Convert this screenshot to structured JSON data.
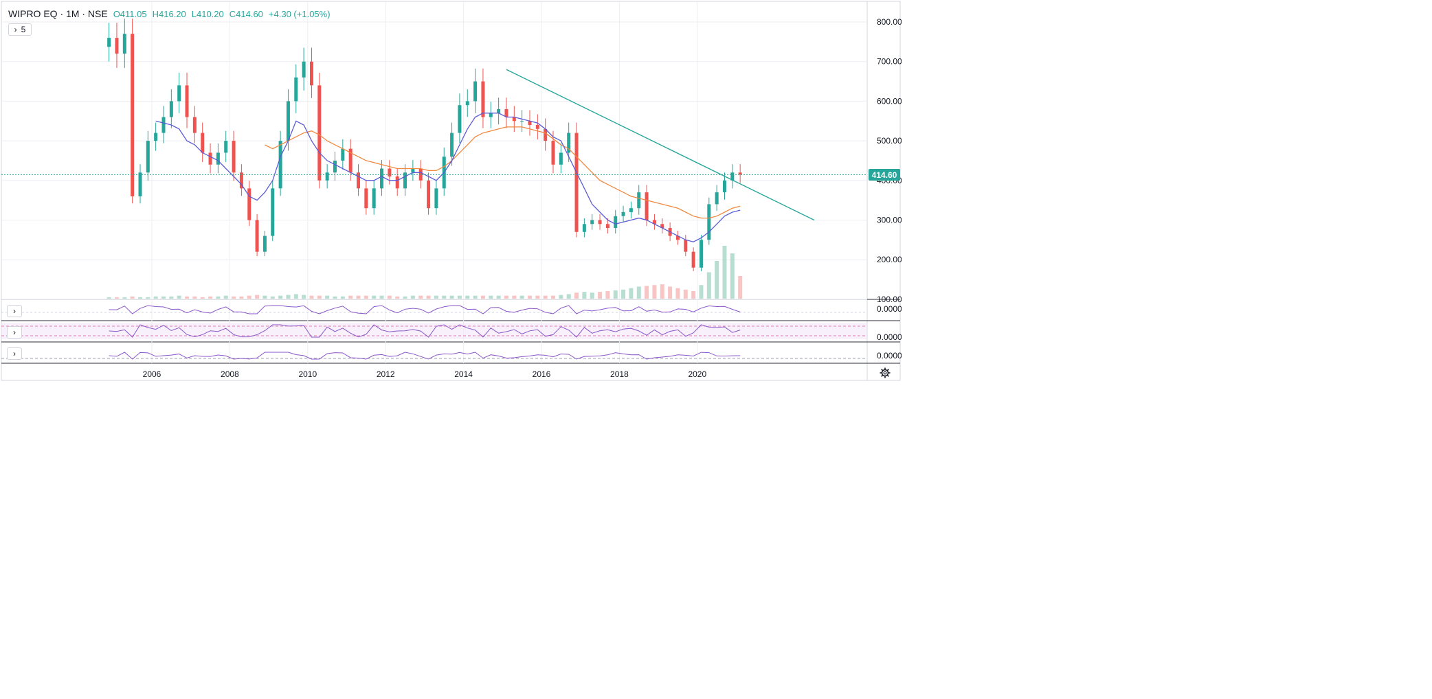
{
  "header": {
    "symbol": "WIPRO EQ · 1M · NSE",
    "open": "O411.05",
    "high": "H416.20",
    "low": "L410.20",
    "close": "C414.60",
    "change": "+4.30 (+1.05%)",
    "indicators_toggle": "5"
  },
  "last_price_label": "414.60",
  "colors": {
    "up": "#26a69a",
    "down": "#ef5350",
    "ma_fast": "#5b5bd6",
    "ma_slow": "#f0883e",
    "trendline": "#26a69a",
    "oscillator": "#8a55c9",
    "grid": "#eceef2"
  },
  "icons": {
    "settings": "gear-icon",
    "collapse": "chevron-right-icon"
  },
  "chart_data": {
    "type": "candlestick",
    "title": "WIPRO EQ · 1M · NSE",
    "price_axis": {
      "ticks": [
        "800.00",
        "700.00",
        "600.00",
        "500.00",
        "400.00",
        "300.00",
        "200.00",
        "100.00"
      ],
      "ylim": [
        100,
        800
      ]
    },
    "time_axis": {
      "ticks": [
        "2006",
        "2008",
        "2010",
        "2012",
        "2014",
        "2016",
        "2018",
        "2020"
      ]
    },
    "grid": true,
    "series": [
      {
        "kind": "close_path",
        "x": [
          2004.9,
          2005.1,
          2005.3,
          2005.5,
          2005.7,
          2005.9,
          2006.1,
          2006.3,
          2006.5,
          2006.7,
          2006.9,
          2007.1,
          2007.3,
          2007.5,
          2007.7,
          2007.9,
          2008.1,
          2008.3,
          2008.5,
          2008.7,
          2008.9,
          2009.1,
          2009.3,
          2009.5,
          2009.7,
          2009.9,
          2010.1,
          2010.3,
          2010.5,
          2010.7,
          2010.9,
          2011.1,
          2011.3,
          2011.5,
          2011.7,
          2011.9,
          2012.1,
          2012.3,
          2012.5,
          2012.7,
          2012.9,
          2013.1,
          2013.3,
          2013.5,
          2013.7,
          2013.9,
          2014.1,
          2014.3,
          2014.5,
          2014.7,
          2014.9,
          2015.1,
          2015.3,
          2015.5,
          2015.7,
          2015.9,
          2016.1,
          2016.3,
          2016.5,
          2016.7,
          2016.9,
          2017.1,
          2017.3,
          2017.5,
          2017.7,
          2017.9,
          2018.1,
          2018.3,
          2018.5,
          2018.7,
          2018.9,
          2019.1,
          2019.3,
          2019.5,
          2019.7,
          2019.9,
          2020.1,
          2020.3,
          2020.5,
          2020.7,
          2020.9,
          2021.1
        ],
        "close": [
          760,
          720,
          770,
          360,
          420,
          500,
          520,
          560,
          600,
          640,
          560,
          520,
          470,
          440,
          470,
          500,
          420,
          380,
          300,
          220,
          260,
          380,
          500,
          600,
          660,
          700,
          640,
          400,
          420,
          450,
          480,
          420,
          380,
          330,
          380,
          430,
          410,
          380,
          420,
          430,
          400,
          330,
          380,
          460,
          520,
          590,
          600,
          650,
          560,
          570,
          580,
          560,
          550,
          550,
          540,
          530,
          500,
          440,
          470,
          520,
          270,
          290,
          300,
          290,
          280,
          310,
          320,
          330,
          370,
          300,
          290,
          280,
          260,
          250,
          220,
          180,
          250,
          340,
          370,
          400,
          420,
          414.6
        ]
      },
      {
        "kind": "ma_fast",
        "values": [
          null,
          null,
          null,
          null,
          null,
          null,
          550,
          545,
          540,
          530,
          500,
          490,
          470,
          460,
          450,
          430,
          410,
          390,
          360,
          350,
          370,
          400,
          460,
          500,
          550,
          540,
          500,
          470,
          450,
          440,
          430,
          420,
          410,
          400,
          400,
          410,
          400,
          400,
          410,
          420,
          420,
          410,
          400,
          420,
          450,
          490,
          530,
          560,
          570,
          570,
          570,
          560,
          560,
          555,
          550,
          545,
          530,
          510,
          500,
          460,
          420,
          380,
          340,
          320,
          300,
          290,
          295,
          300,
          305,
          300,
          290,
          280,
          270,
          260,
          250,
          245,
          255,
          270,
          290,
          310,
          320,
          325
        ]
      },
      {
        "kind": "ma_slow",
        "values": [
          null,
          null,
          null,
          null,
          null,
          null,
          null,
          null,
          null,
          null,
          null,
          null,
          null,
          null,
          null,
          null,
          null,
          null,
          null,
          null,
          490,
          480,
          490,
          500,
          510,
          520,
          525,
          515,
          500,
          490,
          480,
          470,
          460,
          450,
          445,
          440,
          435,
          430,
          430,
          430,
          430,
          425,
          425,
          435,
          450,
          470,
          490,
          510,
          520,
          525,
          530,
          535,
          535,
          535,
          530,
          525,
          520,
          505,
          490,
          480,
          460,
          440,
          420,
          400,
          390,
          380,
          370,
          360,
          355,
          350,
          345,
          340,
          335,
          330,
          320,
          310,
          305,
          305,
          310,
          320,
          330,
          335
        ]
      },
      {
        "kind": "trendline",
        "x": [
          2015.1,
          2023.0
        ],
        "y": [
          680,
          300
        ]
      },
      {
        "kind": "volume",
        "values": [
          2,
          2,
          2,
          3,
          2,
          2,
          3,
          3,
          3,
          4,
          3,
          3,
          2,
          3,
          3,
          4,
          3,
          3,
          4,
          5,
          4,
          3,
          4,
          5,
          6,
          5,
          4,
          4,
          4,
          3,
          3,
          4,
          4,
          4,
          4,
          4,
          4,
          3,
          3,
          4,
          4,
          4,
          4,
          4,
          4,
          4,
          4,
          4,
          4,
          4,
          4,
          4,
          4,
          4,
          4,
          4,
          4,
          4,
          5,
          6,
          8,
          9,
          8,
          9,
          10,
          11,
          12,
          14,
          16,
          17,
          18,
          19,
          16,
          14,
          12,
          10,
          18,
          35,
          50,
          70,
          60,
          30
        ]
      }
    ],
    "panes": [
      {
        "name": "pane-1",
        "axis_label": "0.0000"
      },
      {
        "name": "pane-2",
        "axis_label": "0.0000"
      },
      {
        "name": "pane-3",
        "axis_label": "0.0000"
      }
    ]
  }
}
